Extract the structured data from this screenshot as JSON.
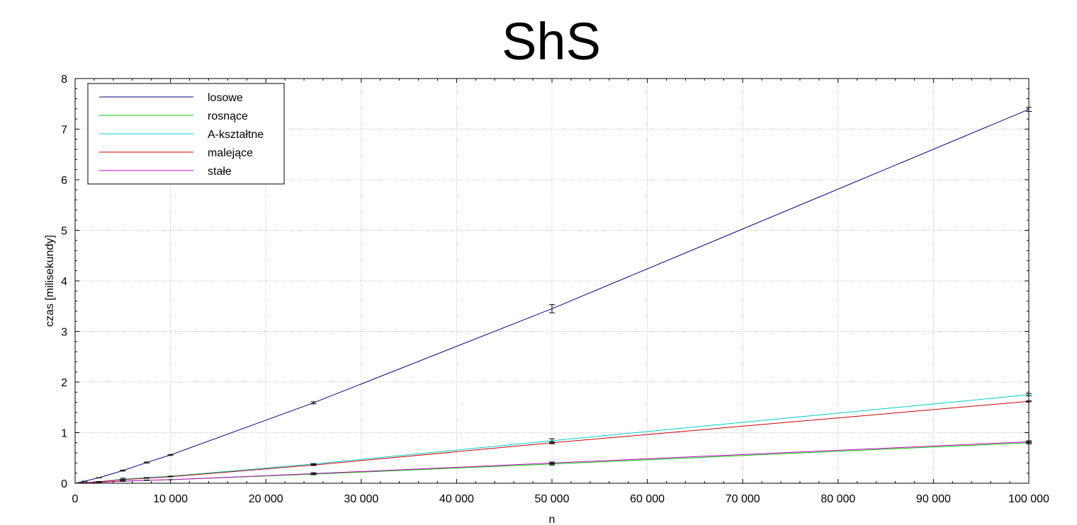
{
  "chart_data": {
    "type": "line",
    "title": "ShS",
    "xlabel": "n",
    "ylabel": "czas [milisekundy]",
    "xlim": [
      0,
      100000
    ],
    "ylim": [
      0,
      8
    ],
    "grid": true,
    "legend_position": "top-left",
    "x_ticks": [
      0,
      10000,
      20000,
      30000,
      40000,
      50000,
      60000,
      70000,
      80000,
      90000,
      100000
    ],
    "x_tick_labels": [
      "0",
      "10 000",
      "20 000",
      "30 000",
      "40 000",
      "50 000",
      "60 000",
      "70 000",
      "80 000",
      "90 000",
      "100 000"
    ],
    "y_ticks": [
      0,
      1,
      2,
      3,
      4,
      5,
      6,
      7,
      8
    ],
    "y_tick_labels": [
      "0",
      "1",
      "2",
      "3",
      "4",
      "5",
      "6",
      "7",
      "8"
    ],
    "x": [
      1000,
      2500,
      5000,
      7500,
      10000,
      25000,
      50000,
      100000
    ],
    "series": [
      {
        "name": "losowe",
        "color": "#00007f",
        "values": [
          0.04,
          0.11,
          0.25,
          0.41,
          0.56,
          1.59,
          3.45,
          7.39
        ],
        "errors": [
          0.0,
          0.0,
          0.01,
          0.01,
          0.01,
          0.02,
          0.08,
          0.04
        ]
      },
      {
        "name": "rosnące",
        "color": "#00cc00",
        "values": [
          0.01,
          0.02,
          0.04,
          0.06,
          0.07,
          0.18,
          0.38,
          0.8
        ],
        "errors": [
          0.0,
          0.0,
          0.0,
          0.0,
          0.0,
          0.01,
          0.02,
          0.02
        ]
      },
      {
        "name": "A-kształtne",
        "color": "#00cccc",
        "values": [
          0.01,
          0.03,
          0.08,
          0.11,
          0.14,
          0.38,
          0.84,
          1.75
        ],
        "errors": [
          0.0,
          0.0,
          0.02,
          0.0,
          0.0,
          0.01,
          0.04,
          0.02
        ]
      },
      {
        "name": "malejące",
        "color": "#cc0000",
        "values": [
          0.01,
          0.03,
          0.07,
          0.1,
          0.13,
          0.36,
          0.8,
          1.62
        ],
        "errors": [
          0.0,
          0.0,
          0.0,
          0.0,
          0.0,
          0.01,
          0.02,
          0.01
        ]
      },
      {
        "name": "stałe",
        "color": "#cc00cc",
        "values": [
          0.01,
          0.02,
          0.04,
          0.06,
          0.07,
          0.19,
          0.4,
          0.82
        ],
        "errors": [
          0.0,
          0.0,
          0.0,
          0.0,
          0.0,
          0.02,
          0.02,
          0.02
        ]
      }
    ]
  }
}
